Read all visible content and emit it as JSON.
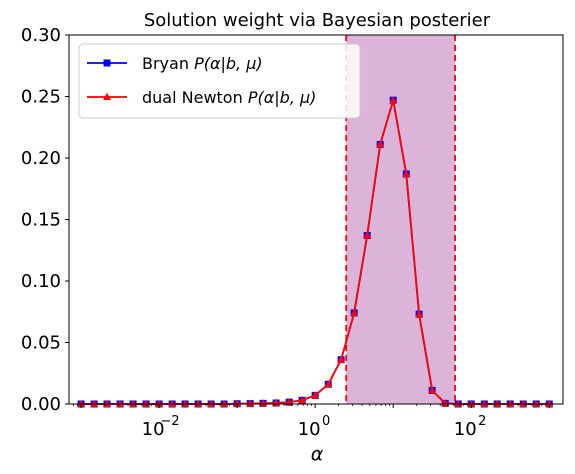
{
  "chart_data": {
    "type": "line",
    "title": "Solution weight via Bayesian posterier",
    "xlabel": "α",
    "ylabel": "",
    "xscale": "log",
    "xlim": [
      0.0007,
      1500
    ],
    "ylim": [
      0,
      0.3
    ],
    "yticks": [
      {
        "value": 0.0,
        "label": "0.00"
      },
      {
        "value": 0.05,
        "label": "0.05"
      },
      {
        "value": 0.1,
        "label": "0.10"
      },
      {
        "value": 0.15,
        "label": "0.15"
      },
      {
        "value": 0.2,
        "label": "0.20"
      },
      {
        "value": 0.25,
        "label": "0.25"
      },
      {
        "value": 0.3,
        "label": "0.30"
      }
    ],
    "xticks": [
      {
        "value": 0.01,
        "base": "10",
        "exp": "−2"
      },
      {
        "value": 1,
        "base": "10",
        "exp": "0"
      },
      {
        "value": 100,
        "base": "10",
        "exp": "2"
      }
    ],
    "x": [
      0.001,
      0.00147,
      0.00215,
      0.00316,
      0.00464,
      0.00681,
      0.01,
      0.0147,
      0.0215,
      0.0316,
      0.0464,
      0.0681,
      0.1,
      0.147,
      0.215,
      0.316,
      0.464,
      0.681,
      1.0,
      1.47,
      2.15,
      3.16,
      4.64,
      6.81,
      10.0,
      14.7,
      21.5,
      31.6,
      46.4,
      68.1,
      100,
      147,
      215,
      316,
      464,
      681,
      1000
    ],
    "series": [
      {
        "name": "Bryan P(α|b,μ)",
        "color": "#0000ff",
        "marker": "square",
        "values": [
          0,
          0,
          0,
          0,
          0,
          0,
          0,
          0,
          0,
          0,
          0,
          0,
          0.0002,
          0.0003,
          0.0005,
          0.0008,
          0.0015,
          0.003,
          0.007,
          0.016,
          0.036,
          0.074,
          0.137,
          0.211,
          0.247,
          0.187,
          0.073,
          0.011,
          0.0005,
          0,
          0,
          0,
          0,
          0,
          0,
          0,
          0
        ]
      },
      {
        "name": "dual Newton P(α|b,μ)",
        "color": "#ff0000",
        "marker": "triangle",
        "values": [
          0,
          0,
          0,
          0,
          0,
          0,
          0,
          0,
          0,
          0,
          0,
          0,
          0.0002,
          0.0003,
          0.0005,
          0.0008,
          0.0015,
          0.003,
          0.007,
          0.016,
          0.036,
          0.074,
          0.137,
          0.211,
          0.247,
          0.187,
          0.073,
          0.011,
          0.0005,
          0,
          0,
          0,
          0,
          0,
          0,
          0,
          0
        ]
      }
    ],
    "shaded_region": {
      "x_start": 2.5,
      "x_end": 62,
      "color": "#dbb4d8"
    },
    "vlines": [
      {
        "x": 2.5,
        "color": "#ff0000",
        "style": "dashed"
      },
      {
        "x": 62,
        "color": "#ff0000",
        "style": "dashed"
      }
    ],
    "legend": {
      "position": "top-left",
      "entries": [
        {
          "prefix": "Bryan ",
          "math": "P(α|b, μ)"
        },
        {
          "prefix": "dual Newton ",
          "math": "P(α|b, μ)"
        }
      ]
    },
    "grid": false
  }
}
